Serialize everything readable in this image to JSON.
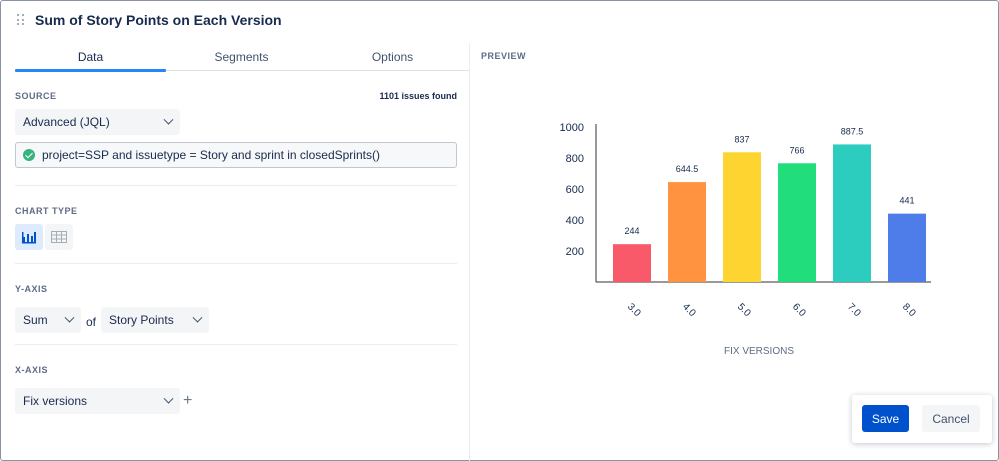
{
  "title": "Sum of Story Points on Each Version",
  "tabs": [
    {
      "label": "Data",
      "active": true
    },
    {
      "label": "Segments",
      "active": false
    },
    {
      "label": "Options",
      "active": false
    }
  ],
  "source": {
    "label": "SOURCE",
    "issues_found": "1101 issues found",
    "mode": "Advanced (JQL)",
    "jql": "project=SSP and issuetype = Story and sprint in closedSprints()"
  },
  "chart_type": {
    "label": "CHART TYPE",
    "options": [
      {
        "icon": "bar-chart-icon",
        "selected": true
      },
      {
        "icon": "table-icon",
        "selected": false
      }
    ]
  },
  "y_axis": {
    "label": "Y-AXIS",
    "aggregate": "Sum",
    "of": "of",
    "field": "Story Points"
  },
  "x_axis": {
    "label": "X-AXIS",
    "field": "Fix versions"
  },
  "preview": {
    "label": "PREVIEW"
  },
  "chart_data": {
    "type": "bar",
    "categories": [
      "3.0",
      "4.0",
      "5.0",
      "6.0",
      "7.0",
      "8.0"
    ],
    "values": [
      244,
      644.5,
      837,
      766,
      887.5,
      441
    ],
    "value_labels": [
      "244",
      "644.5",
      "837",
      "766",
      "887.5",
      "441"
    ],
    "colors": [
      "#f95a6a",
      "#ff9340",
      "#fed430",
      "#22dd7c",
      "#2cccbf",
      "#4e7de9"
    ],
    "xlabel": "FIX VERSIONS",
    "ylabel": "",
    "yticks": [
      200,
      400,
      600,
      800,
      1000
    ],
    "ylim": [
      0,
      1000
    ]
  },
  "actions": {
    "save": "Save",
    "cancel": "Cancel"
  }
}
